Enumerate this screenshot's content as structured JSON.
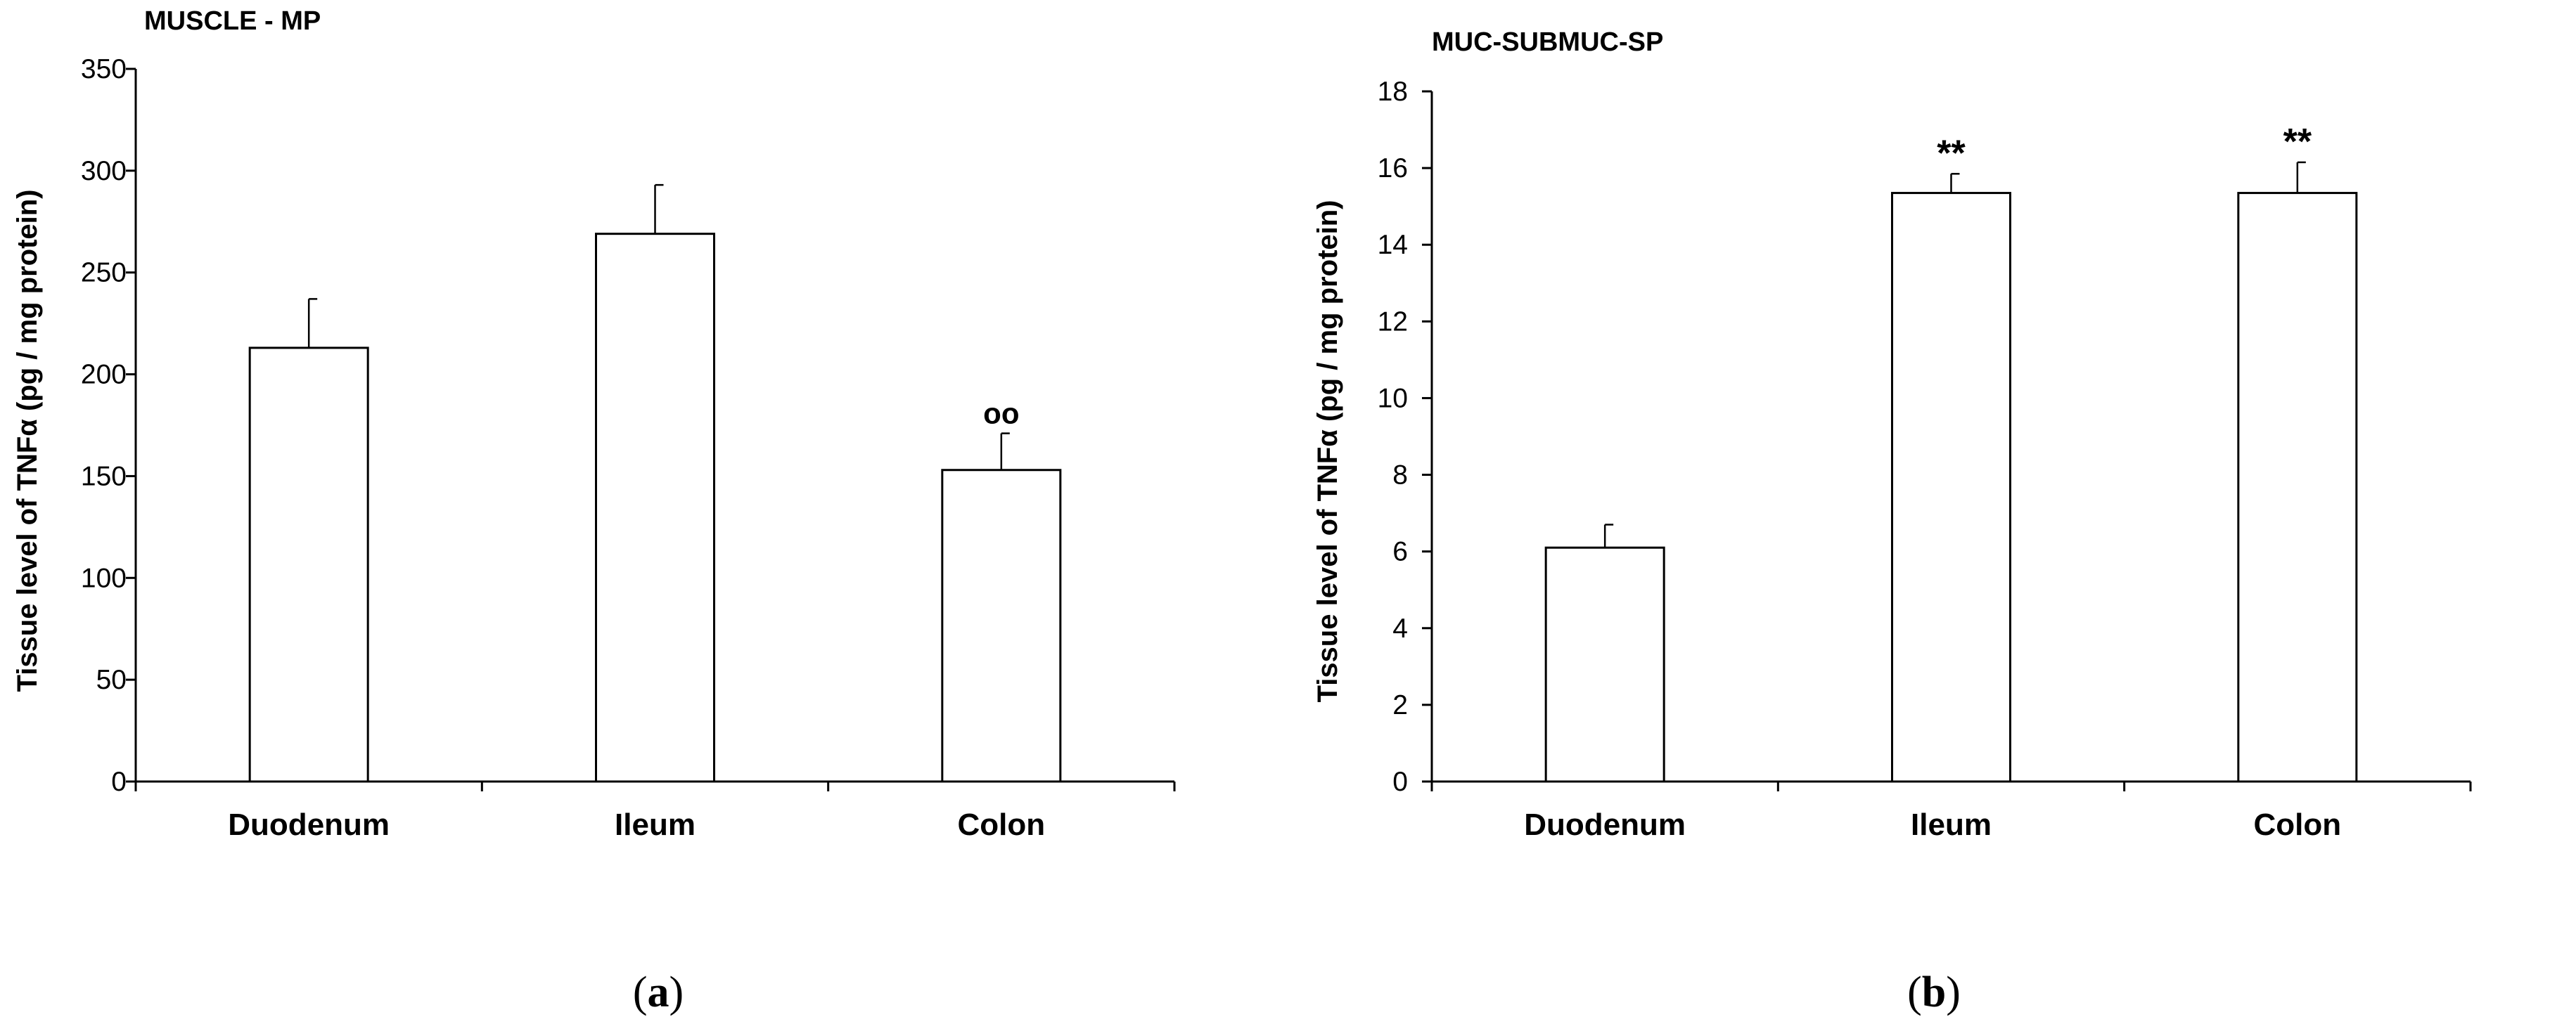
{
  "chart_data": [
    {
      "type": "bar",
      "panel_label": "a",
      "title": "MUSCLE - MP",
      "ylabel": "Tissue level of TNFα (pg / mg protein)",
      "xlabel": "",
      "categories": [
        "Duodenum",
        "Ileum",
        "Colon"
      ],
      "values": [
        213,
        269,
        153
      ],
      "error_plus": [
        24,
        24,
        18
      ],
      "annotations": [
        "",
        "",
        "oo"
      ],
      "ylim": [
        0,
        350
      ],
      "yticks": [
        0,
        50,
        100,
        150,
        200,
        250,
        300,
        350
      ],
      "grid": false,
      "bar_color": "#ffffff",
      "edge_color": "#000000"
    },
    {
      "type": "bar",
      "panel_label": "b",
      "title": "MUC-SUBMUC-SP",
      "ylabel": "Tissue level of TNFα (pg / mg protein)",
      "xlabel": "",
      "categories": [
        "Duodenum",
        "Ileum",
        "Colon"
      ],
      "values": [
        6.1,
        15.35,
        15.35
      ],
      "error_plus": [
        0.6,
        0.5,
        0.8
      ],
      "annotations": [
        "",
        "**",
        "**"
      ],
      "ylim": [
        0,
        18
      ],
      "yticks": [
        0,
        2,
        4,
        6,
        8,
        10,
        12,
        14,
        16,
        18
      ],
      "grid": false,
      "bar_color": "#ffffff",
      "edge_color": "#000000"
    }
  ]
}
